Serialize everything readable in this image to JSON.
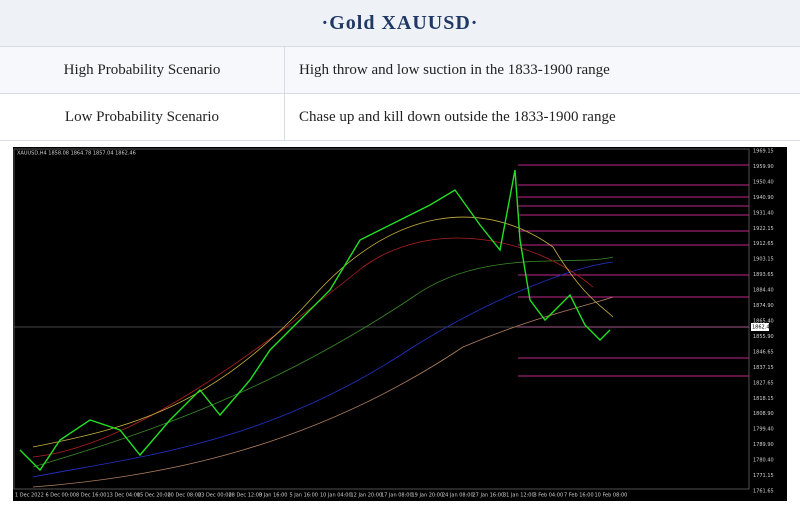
{
  "header": {
    "title": "·Gold  XAUUSD·"
  },
  "table": {
    "rows": [
      [
        "High  Probability  Scenario",
        "High  throw  and  low  suction  in  the  1833-1900  range"
      ],
      [
        "Low  Probability  Scenario",
        "Chase  up  and  kill  down  outside  the  1833-1900  range"
      ]
    ]
  },
  "chart": {
    "header_text": "XAUUSD,H4  1858.08 1864.78 1857.04 1862.46",
    "current_price": "1862.46",
    "price_labels": [
      "1969.15",
      "1959.90",
      "1950.40",
      "1940.90",
      "1931.40",
      "1922.15",
      "1912.65",
      "1903.15",
      "1893.65",
      "1884.40",
      "1874.90",
      "1865.40",
      "1855.90",
      "1846.65",
      "1837.15",
      "1827.65",
      "1818.15",
      "1808.90",
      "1799.40",
      "1789.90",
      "1780.40",
      "1771.15",
      "1761.65"
    ],
    "time_labels": [
      "1 Dec 2022",
      "6 Dec 00:00",
      "8 Dec 16:00",
      "13 Dec 04:00",
      "15 Dec 20:00",
      "20 Dec 08:00",
      "23 Dec 00:00",
      "28 Dec 12:00",
      "3 Jan 16:00",
      "5 Jan 16:00",
      "10 Jan 04:00",
      "12 Jan 20:00",
      "17 Jan 08:00",
      "19 Jan 20:00",
      "24 Jan 08:00",
      "27 Jan 16:00",
      "31 Jan 12:00",
      "3 Feb 04:00",
      "7 Feb 16:00",
      "10 Feb 08:00"
    ]
  }
}
